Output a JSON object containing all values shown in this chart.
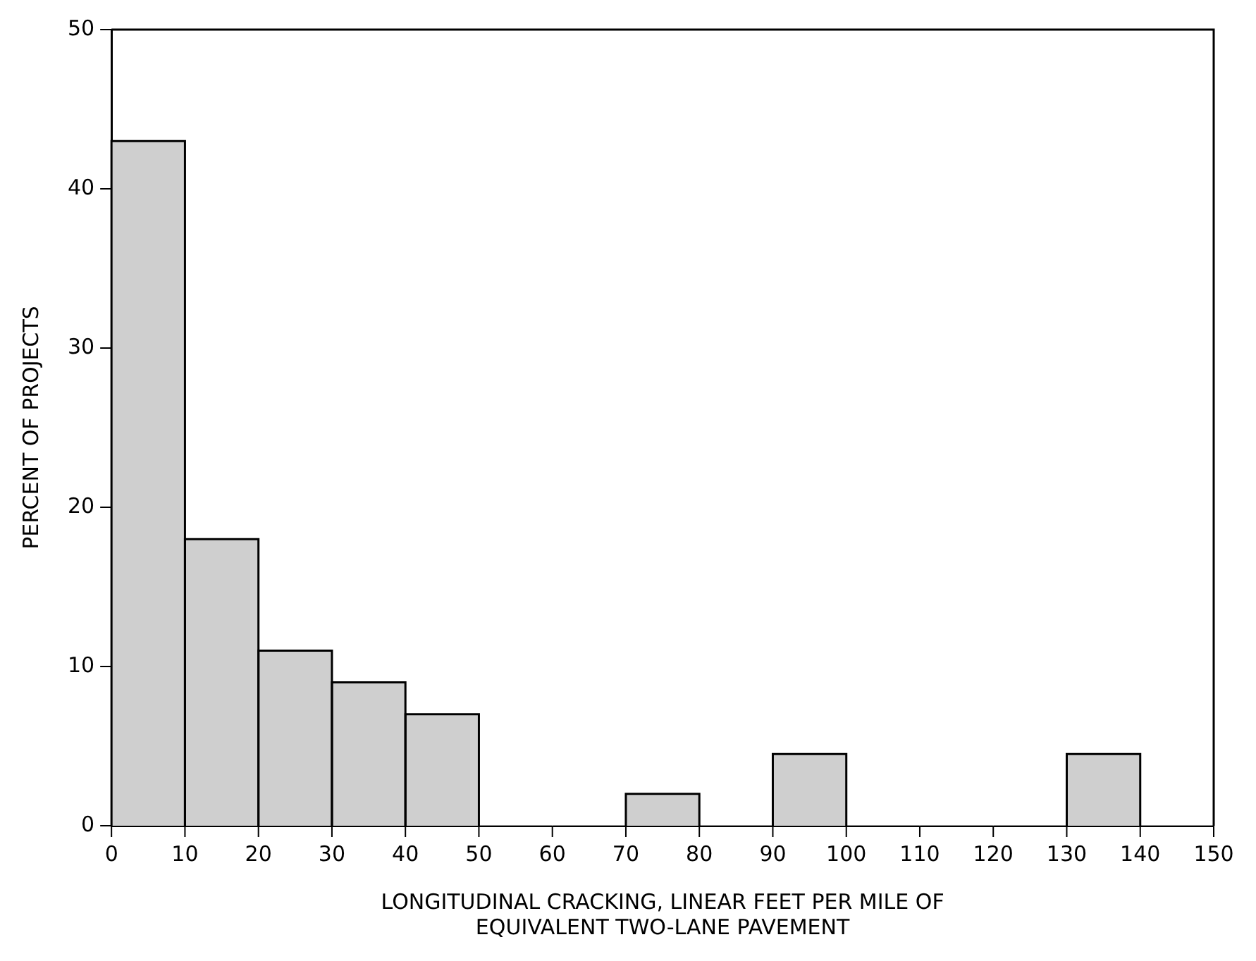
{
  "chart_data": {
    "type": "histogram",
    "xlabel": "LONGITUDINAL CRACKING, LINEAR FEET PER MILE OF\nEQUIVALENT TWO-LANE PAVEMENT",
    "ylabel": "PERCENT OF PROJECTS",
    "bins": [
      0,
      10,
      20,
      30,
      40,
      50,
      60,
      70,
      80,
      90,
      100,
      110,
      120,
      130,
      140,
      150
    ],
    "values": [
      43,
      18,
      11,
      9,
      7,
      0,
      0,
      2,
      0,
      4.5,
      0,
      0,
      0,
      4.5,
      0
    ],
    "color": "#cfcfcf",
    "xlim": [
      0,
      150
    ],
    "xticks": [
      0,
      10,
      20,
      30,
      40,
      50,
      60,
      70,
      80,
      90,
      100,
      110,
      120,
      130,
      140,
      150
    ],
    "ylim": [
      0,
      50
    ],
    "yticks": [
      0,
      10,
      20,
      30,
      40,
      50
    ],
    "grid": false,
    "legend": false
  }
}
